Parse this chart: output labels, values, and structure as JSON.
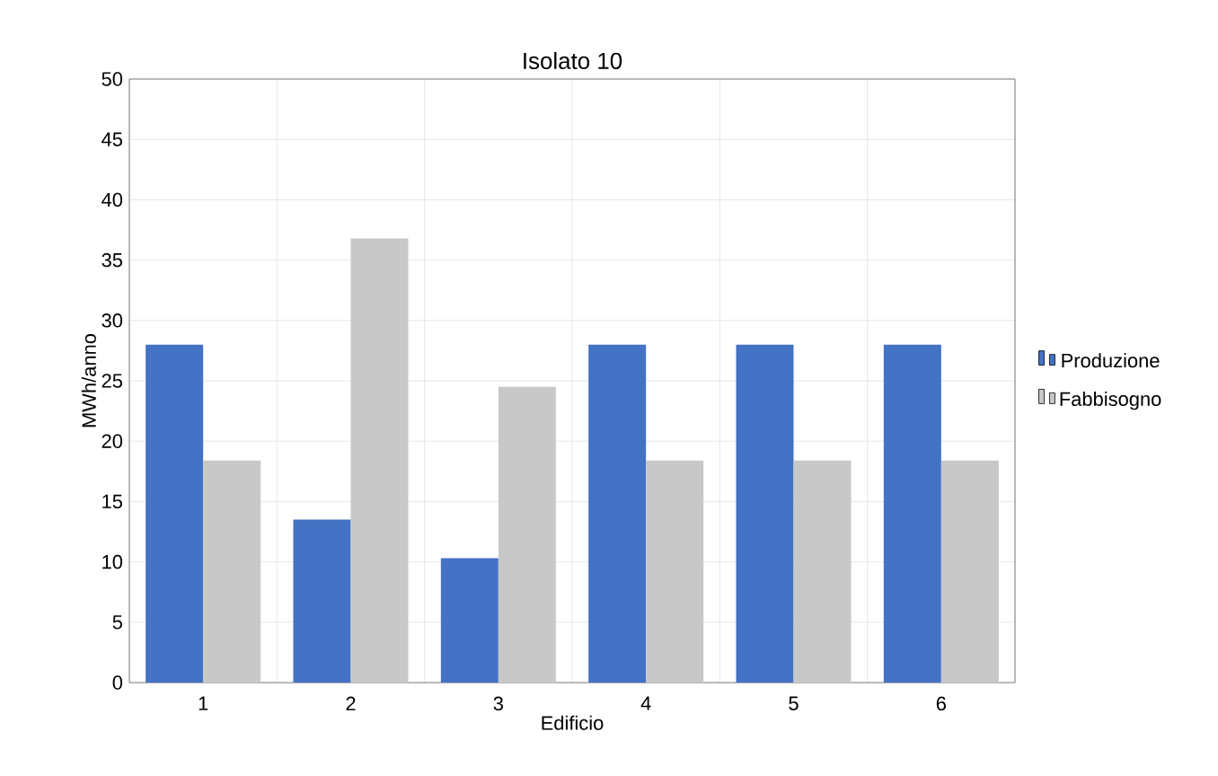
{
  "chart_data": {
    "type": "bar",
    "title": "Isolato 10",
    "xlabel": "Edificio",
    "ylabel": "MWh/anno",
    "categories": [
      "1",
      "2",
      "3",
      "4",
      "5",
      "6"
    ],
    "series": [
      {
        "name": "Produzione",
        "color": "#4472c4",
        "values": [
          28,
          13.5,
          10.3,
          28,
          28,
          28
        ]
      },
      {
        "name": "Fabbisogno",
        "color": "#c8c8c8",
        "values": [
          18.4,
          36.8,
          24.5,
          18.4,
          18.4,
          18.4
        ]
      }
    ],
    "ylim": [
      0,
      50
    ],
    "yticks": [
      0,
      5,
      10,
      15,
      20,
      25,
      30,
      35,
      40,
      45,
      50
    ],
    "grid": true,
    "legend": "right"
  }
}
